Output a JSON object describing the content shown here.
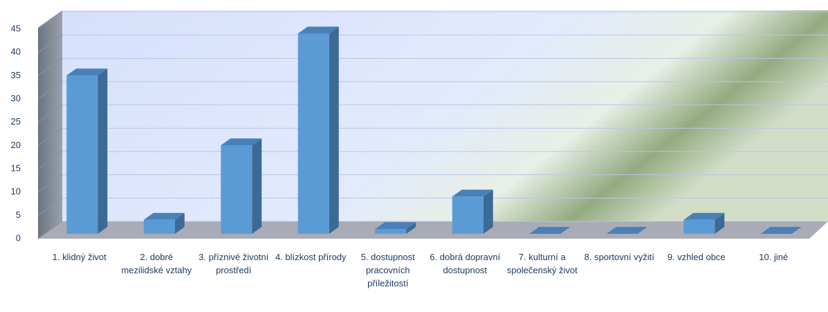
{
  "chart_data": {
    "type": "bar3d",
    "categories": [
      "1. klidný život",
      "2. dobré mezilidské vztahy",
      "3. příznivé životní prostředí",
      "4. blízkost přírody",
      "5. dostupnost pracovních příležitostí",
      "6. dobrá dopravní dostupnost",
      "7. kulturní a společenský život",
      "8. sportovní vyžití",
      "9. vzhled obce",
      "10. jiné"
    ],
    "values": [
      34,
      3,
      19,
      43,
      1,
      8,
      0,
      0,
      3,
      0
    ],
    "color": "#5b9bd5",
    "ylim": [
      0,
      45
    ],
    "yticks": [
      0,
      5,
      10,
      15,
      20,
      25,
      30,
      35,
      40,
      45
    ],
    "grid": true
  }
}
